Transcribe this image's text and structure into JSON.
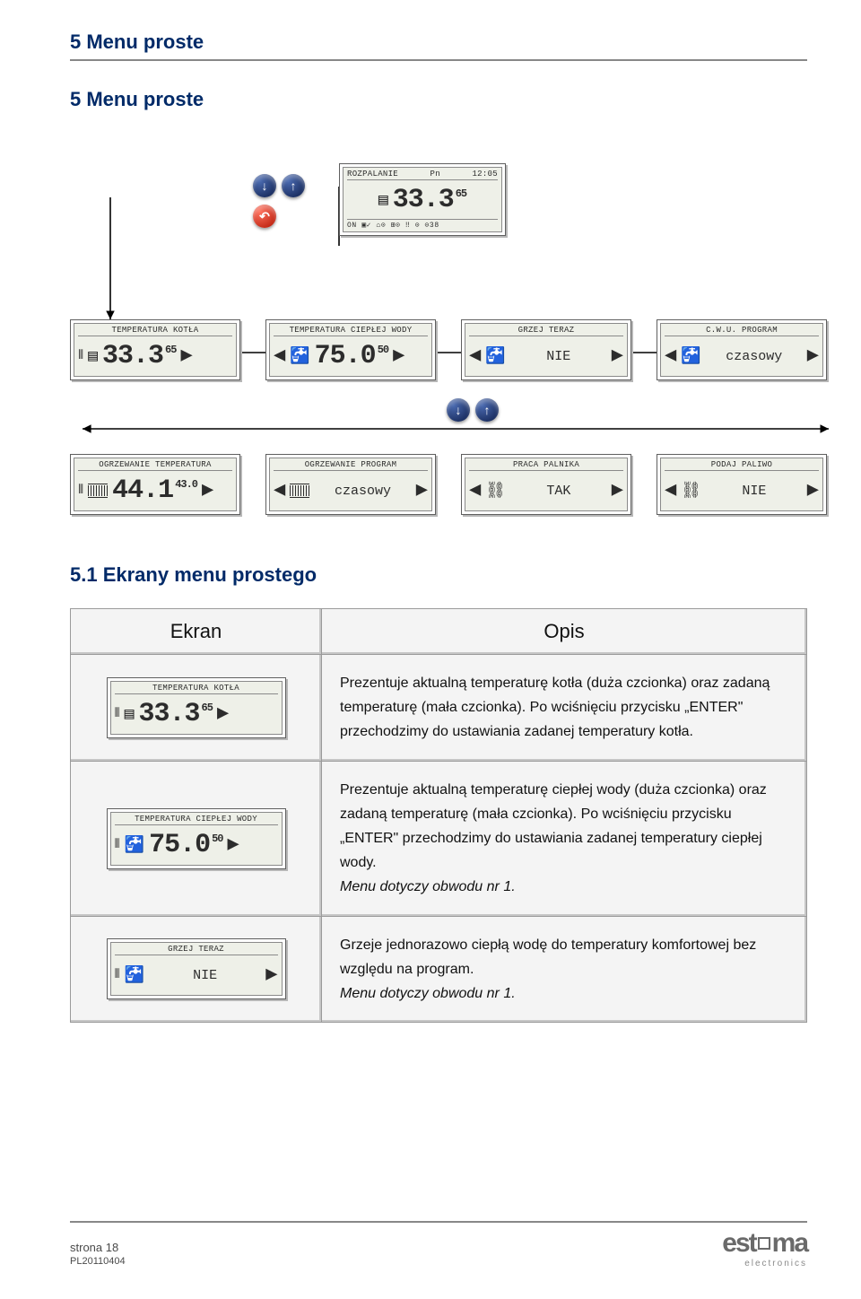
{
  "header": {
    "title": "5 Menu proste"
  },
  "section": {
    "title": "5 Menu proste",
    "sub": "5.1 Ekrany menu prostego"
  },
  "buttons": {
    "down": "↓",
    "up": "↑",
    "back": "↶"
  },
  "diagram": {
    "main": {
      "title_l": "ROZPALANIE",
      "title_m": "Pn",
      "title_r": "12:05",
      "value": "33.3",
      "sup": "65",
      "footer": "ON  ▣✓ ⌂⊙ ⊞⊙ ‼ ⊙ ⊙38"
    },
    "r1": [
      {
        "title": "TEMPERATURA KOTŁA",
        "kind": "big",
        "icon": "boiler",
        "value": "33.3",
        "sup": "65"
      },
      {
        "title": "TEMPERATURA CIEPŁEJ WODY",
        "kind": "big",
        "icon": "tap",
        "value": "75.0",
        "sup": "50"
      },
      {
        "title": "GRZEJ TERAZ",
        "kind": "mid",
        "icon": "tap",
        "value": "NIE"
      },
      {
        "title": "C.W.U. PROGRAM",
        "kind": "mid",
        "icon": "tap",
        "value": "czasowy"
      }
    ],
    "r2": [
      {
        "title": "OGRZEWANIE TEMPERATURA",
        "kind": "big",
        "icon": "radiator",
        "value": "44.1",
        "sup": "43.0"
      },
      {
        "title": "OGRZEWANIE PROGRAM",
        "kind": "mid",
        "icon": "radiator",
        "value": "czasowy"
      },
      {
        "title": "PRACA PALNIKA",
        "kind": "mid",
        "icon": "burner",
        "value": "TAK"
      },
      {
        "title": "PODAJ PALIWO",
        "kind": "mid",
        "icon": "burner",
        "value": "NIE"
      }
    ]
  },
  "table": {
    "th1": "Ekran",
    "th2": "Opis",
    "rows": [
      {
        "screen": {
          "title": "TEMPERATURA KOTŁA",
          "icon": "boiler",
          "value": "33.3",
          "sup": "65"
        },
        "text": "Prezentuje aktualną temperaturę kotła (duża czcionka) oraz zadaną temperaturę (mała czcionka). Po wciśnięciu przycisku „ENTER\" przechodzimy do ustawiania zadanej temperatury kotła."
      },
      {
        "screen": {
          "title": "TEMPERATURA CIEPŁEJ WODY",
          "icon": "tap",
          "value": "75.0",
          "sup": "50"
        },
        "text": "Prezentuje aktualną temperaturę ciepłej wody  (duża czcionka) oraz zadaną temperaturę (mała czcionka). Po wciśnięciu przycisku „ENTER\" przechodzimy do ustawiania zadanej temperatury ciepłej wody.",
        "italic": "Menu dotyczy obwodu nr 1."
      },
      {
        "screen": {
          "title": "GRZEJ TERAZ",
          "icon": "tap",
          "value": "NIE",
          "kind": "mid"
        },
        "text": "Grzeje jednorazowo ciepłą wodę do temperatury komfortowej bez względu na program.",
        "italic": "Menu dotyczy obwodu nr 1."
      }
    ]
  },
  "footer": {
    "page": "strona 18",
    "code": "PL20110404",
    "logo": "estyma",
    "logo_sub": "electronics"
  },
  "colors": {
    "primary": "#002a68",
    "rule": "#888888",
    "cell_bg": "#f4f4f4",
    "cell_border": "#9a9a9a",
    "lcd_bg": "#eef0e8",
    "btn_navy": "#1a2f6a",
    "btn_red": "#d01a05"
  }
}
